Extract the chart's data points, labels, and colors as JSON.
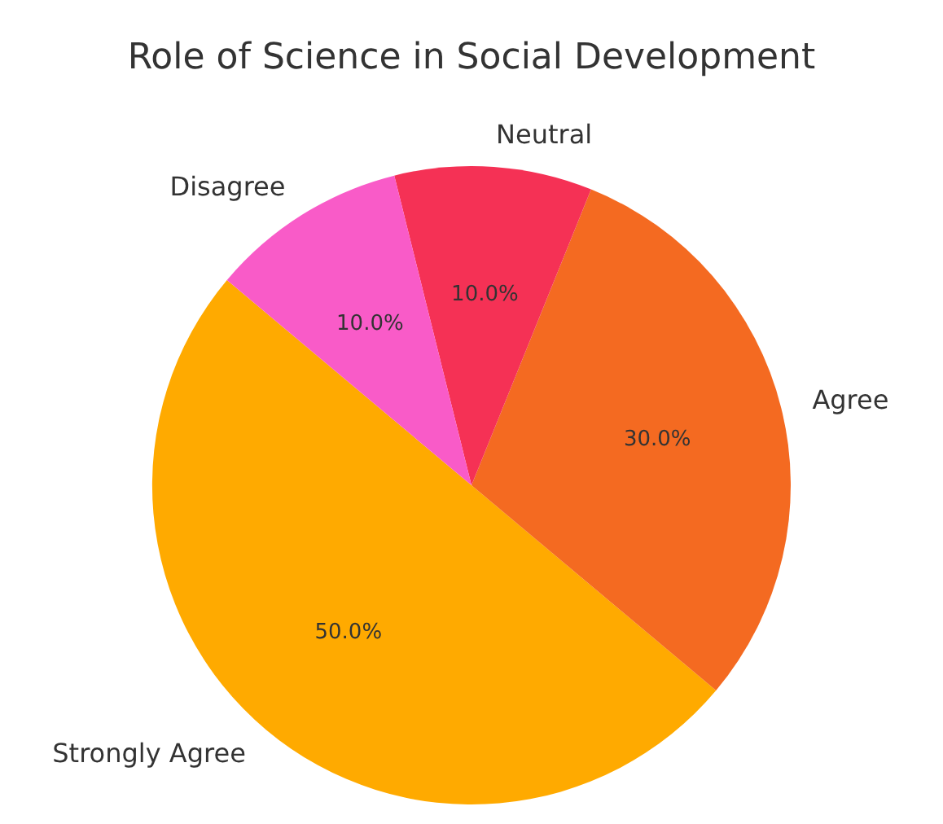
{
  "chart_data": {
    "type": "pie",
    "title": "Role of Science in Social Development",
    "categories": [
      "Strongly Agree",
      "Agree",
      "Neutral",
      "Disagree"
    ],
    "values": [
      50,
      30,
      10,
      10
    ],
    "colors": [
      "#ffaa00",
      "#f46a21",
      "#f53155",
      "#f95bc8"
    ],
    "value_labels": [
      "50.0%",
      "30.0%",
      "10.0%",
      "10.0%"
    ]
  }
}
